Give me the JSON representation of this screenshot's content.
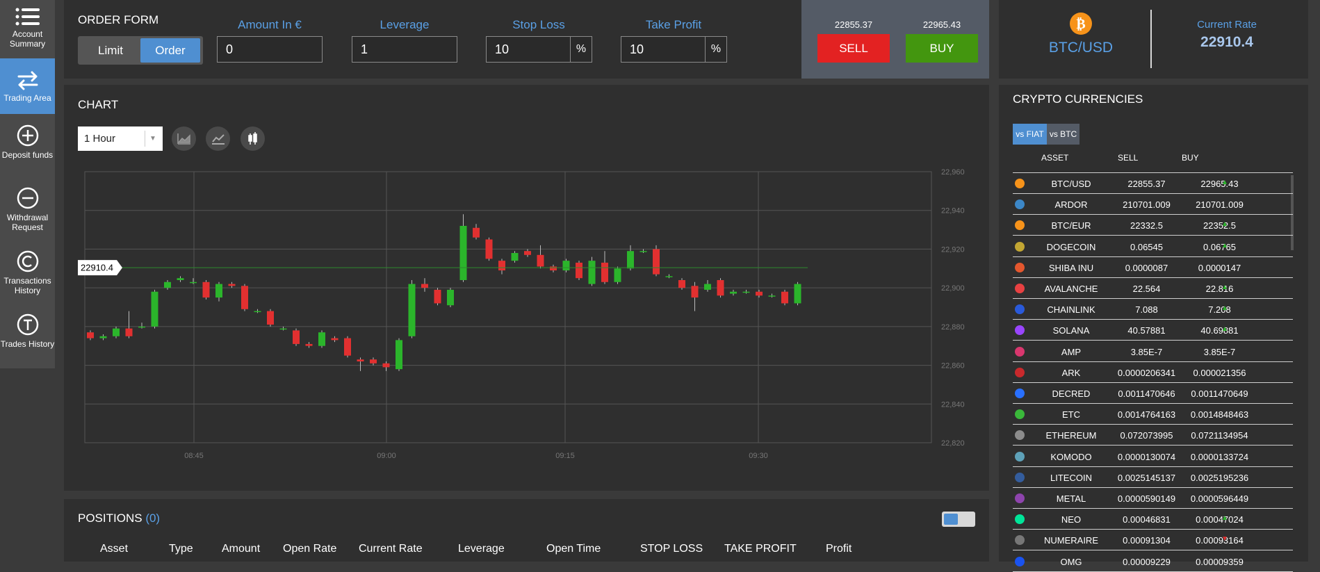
{
  "sidebar": {
    "items": [
      {
        "label": "Account Summary",
        "icon": "list-icon",
        "active": false
      },
      {
        "label": "Trading Area",
        "icon": "exchange-arrows-icon",
        "active": true
      },
      {
        "label": "Deposit funds",
        "icon": "plus-circle-icon",
        "active": false
      },
      {
        "label": "Withdrawal Request",
        "icon": "minus-circle-icon",
        "active": false
      },
      {
        "label": "Transactions History",
        "icon": "copyright-circle-icon",
        "active": false
      },
      {
        "label": "Trades History",
        "icon": "t-circle-icon",
        "active": false
      }
    ]
  },
  "order_form": {
    "title": "ORDER FORM",
    "limit_label": "Limit",
    "order_label": "Order",
    "amount_label": "Amount In €",
    "amount_value": "0",
    "leverage_label": "Leverage",
    "leverage_value": "1",
    "stop_loss_label": "Stop Loss",
    "stop_loss_value": "10",
    "take_profit_label": "Take Profit",
    "take_profit_value": "10",
    "percent_symbol": "%",
    "sell_price": "22855.37",
    "buy_price": "22965.43",
    "sell_label": "SELL",
    "buy_label": "BUY"
  },
  "rate_box": {
    "pair": "BTC/USD",
    "current_rate_label": "Current Rate",
    "current_rate": "22910.4"
  },
  "chart_panel": {
    "title": "CHART",
    "interval": "1 Hour",
    "price_tag": "22910.4"
  },
  "colors": {
    "accent": "#4f8fd1",
    "sell": "#e32222",
    "buy": "#43960f",
    "up_candle": "#2bb52b",
    "down_candle": "#e23030"
  },
  "chart_data": {
    "type": "candlestick",
    "yticks": [
      "22,960",
      "22,940",
      "22,920",
      "22,900",
      "22,880",
      "22,860",
      "22,840",
      "22,820"
    ],
    "ylim": [
      22820,
      22960
    ],
    "xticks": [
      "08:45",
      "09:00",
      "09:15",
      "09:30"
    ],
    "current_price": 22910.4,
    "candles": [
      [
        22877,
        22874,
        22878,
        22873
      ],
      [
        22874,
        22875,
        22876,
        22873
      ],
      [
        22875,
        22879,
        22880,
        22874
      ],
      [
        22879,
        22875,
        22888,
        22874
      ],
      [
        22880,
        22880,
        22882,
        22879
      ],
      [
        22880,
        22898,
        22899,
        22879
      ],
      [
        22900,
        22903,
        22904,
        22899
      ],
      [
        22904,
        22905,
        22906,
        22903
      ],
      [
        22903,
        22903,
        22905,
        22902
      ],
      [
        22903,
        22895,
        22904,
        22894
      ],
      [
        22895,
        22902,
        22903,
        22893
      ],
      [
        22902,
        22901,
        22903,
        22900
      ],
      [
        22901,
        22889,
        22902,
        22888
      ],
      [
        22888,
        22888,
        22889,
        22887
      ],
      [
        22888,
        22881,
        22889,
        22880
      ],
      [
        22879,
        22879,
        22880,
        22878
      ],
      [
        22878,
        22871,
        22879,
        22870
      ],
      [
        22871,
        22870,
        22872,
        22869
      ],
      [
        22870,
        22877,
        22878,
        22869
      ],
      [
        22874,
        22873,
        22875,
        22872
      ],
      [
        22874,
        22865,
        22875,
        22864
      ],
      [
        22863,
        22862,
        22864,
        22857
      ],
      [
        22863,
        22861,
        22864,
        22860
      ],
      [
        22861,
        22859,
        22862,
        22857
      ],
      [
        22858,
        22873,
        22874,
        22857
      ],
      [
        22875,
        22902,
        22904,
        22874
      ],
      [
        22902,
        22900,
        22905,
        22898
      ],
      [
        22899,
        22892,
        22900,
        22891
      ],
      [
        22891,
        22899,
        22900,
        22890
      ],
      [
        22904,
        22932,
        22938,
        22903
      ],
      [
        22931,
        22926,
        22933,
        22925
      ],
      [
        22925,
        22915,
        22926,
        22914
      ],
      [
        22914,
        22909,
        22915,
        22907
      ],
      [
        22914,
        22918,
        22919,
        22913
      ],
      [
        22919,
        22917,
        22920,
        22916
      ],
      [
        22917,
        22911,
        22922,
        22910
      ],
      [
        22911,
        22909,
        22912,
        22908
      ],
      [
        22909,
        22914,
        22915,
        22908
      ],
      [
        22913,
        22905,
        22914,
        22904
      ],
      [
        22902,
        22914,
        22916,
        22901
      ],
      [
        22913,
        22903,
        22919,
        22902
      ],
      [
        22903,
        22910,
        22911,
        22902
      ],
      [
        22910,
        22919,
        22922,
        22909
      ],
      [
        22919,
        22919,
        22920,
        22918
      ],
      [
        22920,
        22907,
        22922,
        22906
      ],
      [
        22906,
        22906,
        22907,
        22905
      ],
      [
        22904,
        22900,
        22905,
        22899
      ],
      [
        22901,
        22895,
        22903,
        22888
      ],
      [
        22899,
        22902,
        22904,
        22898
      ],
      [
        22904,
        22896,
        22905,
        22895
      ],
      [
        22897,
        22898,
        22899,
        22896
      ],
      [
        22898,
        22898,
        22899,
        22897
      ],
      [
        22898,
        22896,
        22899,
        22895
      ],
      [
        22896,
        22896,
        22897,
        22895
      ],
      [
        22898,
        22892,
        22899,
        22891
      ],
      [
        22892,
        22902,
        22903,
        22891
      ]
    ],
    "candle_format": "open, close, high, low"
  },
  "crypto": {
    "title": "CRYPTO CURRENCIES",
    "tab_fiat": "vs FIAT",
    "tab_btc": "vs BTC",
    "col_asset": "ASSET",
    "col_sell": "SELL",
    "col_buy": "BUY",
    "rows": [
      {
        "name": "BTC/USD",
        "sell": "22855.37",
        "buy": "22965.43",
        "arrow": "▲",
        "color": "#f7931a"
      },
      {
        "name": "ARDOR",
        "sell": "210701.009",
        "buy": "210701.009",
        "arrow": "",
        "color": "#3c87c7"
      },
      {
        "name": "BTC/EUR",
        "sell": "22332.5",
        "buy": "22352.5",
        "arrow": "▲",
        "color": "#f7931a"
      },
      {
        "name": "DOGECOIN",
        "sell": "0.06545",
        "buy": "0.06765",
        "arrow": "▲",
        "color": "#c2a633"
      },
      {
        "name": "SHIBA INU",
        "sell": "0.0000087",
        "buy": "0.0000147",
        "arrow": "",
        "color": "#e4572e"
      },
      {
        "name": "AVALANCHE",
        "sell": "22.564",
        "buy": "22.816",
        "arrow": "▲",
        "color": "#e84142"
      },
      {
        "name": "CHAINLINK",
        "sell": "7.088",
        "buy": "7.208",
        "arrow": "▲",
        "color": "#2a5ada"
      },
      {
        "name": "SOLANA",
        "sell": "40.57881",
        "buy": "40.69881",
        "arrow": "▲",
        "color": "#9945ff"
      },
      {
        "name": "AMP",
        "sell": "3.85E-7",
        "buy": "3.85E-7",
        "arrow": "",
        "color": "#d9376e"
      },
      {
        "name": "ARK",
        "sell": "0.0000206341",
        "buy": "0.000021356",
        "arrow": "",
        "color": "#c9292c"
      },
      {
        "name": "DECRED",
        "sell": "0.0011470646",
        "buy": "0.0011470649",
        "arrow": "",
        "color": "#2970ff"
      },
      {
        "name": "ETC",
        "sell": "0.0014764163",
        "buy": "0.0014848463",
        "arrow": "",
        "color": "#3ab83a"
      },
      {
        "name": "ETHEREUM",
        "sell": "0.072073995",
        "buy": "0.0721134954",
        "arrow": "",
        "color": "#8c8c8c"
      },
      {
        "name": "KOMODO",
        "sell": "0.0000130074",
        "buy": "0.0000133724",
        "arrow": "",
        "color": "#5ea1b8"
      },
      {
        "name": "LITECOIN",
        "sell": "0.0025145137",
        "buy": "0.0025195236",
        "arrow": "",
        "color": "#345d9d"
      },
      {
        "name": "METAL",
        "sell": "0.0000590149",
        "buy": "0.0000596449",
        "arrow": "",
        "color": "#8e44ad"
      },
      {
        "name": "NEO",
        "sell": "0.00046831",
        "buy": "0.00047024",
        "arrow": "▲",
        "color": "#00e599"
      },
      {
        "name": "NUMERAIRE",
        "sell": "0.00091304",
        "buy": "0.00093164",
        "arrow": "▼",
        "color": "#777777"
      },
      {
        "name": "OMG",
        "sell": "0.00009229",
        "buy": "0.00009359",
        "arrow": "",
        "color": "#1a53f0"
      }
    ]
  },
  "positions": {
    "title": "POSITIONS",
    "count": "(0)",
    "columns": [
      "Asset",
      "Type",
      "Amount",
      "Open Rate",
      "Current Rate",
      "Leverage",
      "Open Time",
      "STOP LOSS",
      "TAKE PROFIT",
      "Profit"
    ]
  }
}
